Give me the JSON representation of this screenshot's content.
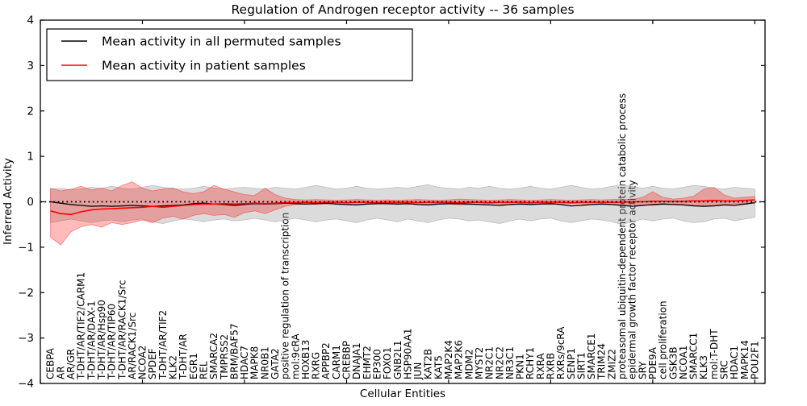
{
  "figure": {
    "title": "Regulation of Androgen receptor activity -- 36 samples",
    "xlabel": "Cellular Entities",
    "ylabel": "Inferred Activity"
  },
  "legend": {
    "items": [
      {
        "label": "Mean activity in all permuted samples",
        "color": "#000000"
      },
      {
        "label": "Mean activity in patient samples",
        "color": "#ff0000"
      }
    ]
  },
  "chart_data": {
    "type": "line",
    "title": "Regulation of Androgen receptor activity -- 36 samples",
    "xlabel": "Cellular Entities",
    "ylabel": "Inferred Activity",
    "ylim": [
      -4,
      4
    ],
    "yticks": [
      4,
      3,
      2,
      1,
      0,
      -1,
      -2,
      -3,
      -4
    ],
    "xlim": [
      0,
      71
    ],
    "xtick_interval": 10,
    "grid": false,
    "zero_reference_line": 0,
    "legend_position": "upper left",
    "categories": [
      "CEBPA",
      "AR",
      "AR/GR",
      "T-DHT/AR/TIF2/CARM1",
      "T-DHT/AR/DAX-1",
      "T-DHT/AR/Hsp90",
      "T-DHT/AR/TIP60",
      "T-DHT/AR/RACK1/Src",
      "AR/RACK1/Src",
      "NCOA2",
      "SPDEF",
      "T-DHT/AR/TIF2",
      "KLK2",
      "T-DHT/AR",
      "EGR1",
      "REL",
      "SMARCA2",
      "TMPRSS2",
      "BRM/BAF57",
      "HDAC7",
      "MAPK8",
      "NR0B1",
      "GATA2",
      "positive regulation of transcription",
      "mol:9cRA",
      "HOXB13",
      "RXRG",
      "APPBP2",
      "CARM1",
      "CREBBP",
      "DNAJA1",
      "EHMT2",
      "EP300",
      "FOXO1",
      "GNB2L1",
      "HSP90AA1",
      "JUN",
      "KAT2B",
      "KAT5",
      "MAP2K4",
      "MAP2K6",
      "MDM2",
      "MYST2",
      "NR2C1",
      "NR2C2",
      "NR3C1",
      "PKN1",
      "RCHY1",
      "RXRA",
      "RXRB",
      "RXRs/9cRA",
      "SENP1",
      "SIRT1",
      "SMARCE1",
      "TRIM24",
      "ZMIZ2",
      "proteasomal ubiquitin-dependent protein catabolic process",
      "epidermal growth factor receptor activity",
      "SRY",
      "PDE9A",
      "cell proliferation",
      "GSK3B",
      "NCOA1",
      "SMARCC1",
      "KLK3",
      "mol:T-DHT",
      "SRC",
      "HDAC1",
      "MAPK14",
      "POU2F1"
    ],
    "series": [
      {
        "name": "Mean activity in all permuted samples",
        "color": "#000000",
        "line_width": 1.3,
        "band_color": "#999999",
        "band_opacity": 0.35,
        "values": [
          0.0,
          -0.03,
          -0.06,
          -0.08,
          -0.1,
          -0.09,
          -0.1,
          -0.09,
          -0.08,
          -0.09,
          -0.1,
          -0.09,
          -0.08,
          -0.07,
          -0.04,
          -0.03,
          -0.05,
          -0.06,
          -0.08,
          -0.06,
          -0.04,
          -0.05,
          -0.04,
          -0.03,
          -0.04,
          -0.05,
          -0.04,
          -0.03,
          -0.05,
          -0.06,
          -0.07,
          -0.05,
          -0.04,
          -0.04,
          -0.05,
          -0.04,
          -0.06,
          -0.07,
          -0.05,
          -0.04,
          -0.04,
          -0.05,
          -0.06,
          -0.07,
          -0.08,
          -0.06,
          -0.05,
          -0.06,
          -0.05,
          -0.04,
          -0.06,
          -0.09,
          -0.08,
          -0.06,
          -0.05,
          -0.06,
          -0.08,
          -0.1,
          -0.08,
          -0.06,
          -0.05,
          -0.06,
          -0.07,
          -0.09,
          -0.1,
          -0.09,
          -0.07,
          -0.08,
          -0.05,
          -0.02
        ],
        "band_upper": [
          0.28,
          0.3,
          0.26,
          0.28,
          0.32,
          0.3,
          0.34,
          0.3,
          0.28,
          0.32,
          0.36,
          0.32,
          0.3,
          0.28,
          0.3,
          0.34,
          0.3,
          0.28,
          0.3,
          0.32,
          0.3,
          0.28,
          0.32,
          0.3,
          0.28,
          0.32,
          0.36,
          0.32,
          0.28,
          0.3,
          0.34,
          0.3,
          0.28,
          0.3,
          0.32,
          0.3,
          0.34,
          0.38,
          0.32,
          0.3,
          0.28,
          0.32,
          0.3,
          0.34,
          0.3,
          0.28,
          0.3,
          0.34,
          0.3,
          0.28,
          0.32,
          0.36,
          0.32,
          0.28,
          0.3,
          0.34,
          0.38,
          0.34,
          0.3,
          0.34,
          0.3,
          0.28,
          0.32,
          0.36,
          0.34,
          0.3,
          0.28,
          0.32,
          0.3,
          0.28
        ],
        "band_lower": [
          -0.46,
          -0.42,
          -0.38,
          -0.42,
          -0.46,
          -0.42,
          -0.4,
          -0.44,
          -0.4,
          -0.38,
          -0.44,
          -0.48,
          -0.42,
          -0.38,
          -0.4,
          -0.44,
          -0.4,
          -0.38,
          -0.42,
          -0.4,
          -0.36,
          -0.4,
          -0.44,
          -0.4,
          -0.36,
          -0.4,
          -0.44,
          -0.4,
          -0.38,
          -0.42,
          -0.46,
          -0.4,
          -0.36,
          -0.4,
          -0.44,
          -0.38,
          -0.42,
          -0.46,
          -0.4,
          -0.36,
          -0.38,
          -0.42,
          -0.4,
          -0.44,
          -0.48,
          -0.42,
          -0.38,
          -0.42,
          -0.38,
          -0.36,
          -0.42,
          -0.46,
          -0.42,
          -0.38,
          -0.4,
          -0.44,
          -0.5,
          -0.44,
          -0.38,
          -0.42,
          -0.38,
          -0.36,
          -0.42,
          -0.46,
          -0.44,
          -0.38,
          -0.36,
          -0.42,
          -0.38,
          -0.34
        ]
      },
      {
        "name": "Mean activity in patient samples",
        "color": "#ff0000",
        "line_width": 1.6,
        "band_color": "#ff0000",
        "band_opacity": 0.27,
        "values": [
          -0.2,
          -0.26,
          -0.28,
          -0.22,
          -0.18,
          -0.16,
          -0.15,
          -0.14,
          -0.13,
          -0.12,
          -0.1,
          -0.12,
          -0.1,
          -0.08,
          -0.06,
          -0.05,
          -0.05,
          -0.04,
          -0.05,
          -0.04,
          -0.03,
          -0.04,
          -0.03,
          -0.02,
          -0.02,
          -0.01,
          -0.02,
          -0.01,
          -0.01,
          -0.02,
          -0.01,
          -0.01,
          -0.02,
          -0.01,
          -0.01,
          -0.01,
          -0.02,
          -0.01,
          -0.01,
          -0.01,
          -0.02,
          -0.01,
          -0.01,
          -0.02,
          -0.01,
          -0.01,
          -0.01,
          -0.02,
          -0.01,
          -0.01,
          -0.01,
          -0.02,
          -0.01,
          -0.01,
          -0.01,
          -0.01,
          -0.01,
          0.0,
          0.0,
          0.01,
          0.01,
          0.01,
          0.01,
          0.02,
          0.02,
          0.03,
          0.02,
          0.02,
          0.03,
          0.04
        ],
        "band_upper": [
          0.3,
          0.24,
          0.28,
          0.34,
          0.26,
          0.3,
          0.24,
          0.36,
          0.44,
          0.3,
          0.24,
          0.28,
          0.3,
          0.22,
          0.18,
          0.22,
          0.36,
          0.28,
          0.22,
          0.16,
          0.14,
          0.3,
          0.16,
          0.08,
          0.05,
          0.04,
          0.05,
          0.04,
          0.03,
          0.04,
          0.05,
          0.04,
          0.03,
          0.04,
          0.03,
          0.04,
          0.05,
          0.04,
          0.03,
          0.04,
          0.06,
          0.05,
          0.04,
          0.03,
          0.04,
          0.05,
          0.04,
          0.03,
          0.04,
          0.05,
          0.04,
          0.03,
          0.04,
          0.05,
          0.04,
          0.05,
          0.06,
          0.05,
          0.1,
          0.22,
          0.1,
          0.06,
          0.08,
          0.12,
          0.28,
          0.32,
          0.15,
          0.08,
          0.1,
          0.12
        ],
        "band_lower": [
          -0.78,
          -0.95,
          -0.66,
          -0.55,
          -0.5,
          -0.56,
          -0.46,
          -0.5,
          -0.46,
          -0.4,
          -0.46,
          -0.36,
          -0.32,
          -0.38,
          -0.3,
          -0.26,
          -0.3,
          -0.28,
          -0.34,
          -0.24,
          -0.2,
          -0.26,
          -0.18,
          -0.1,
          -0.06,
          -0.05,
          -0.06,
          -0.05,
          -0.04,
          -0.05,
          -0.06,
          -0.05,
          -0.04,
          -0.05,
          -0.04,
          -0.05,
          -0.06,
          -0.05,
          -0.04,
          -0.05,
          -0.07,
          -0.06,
          -0.05,
          -0.04,
          -0.05,
          -0.06,
          -0.05,
          -0.04,
          -0.05,
          -0.06,
          -0.05,
          -0.04,
          -0.05,
          -0.06,
          -0.05,
          -0.06,
          -0.07,
          -0.06,
          -0.07,
          -0.08,
          -0.06,
          -0.05,
          -0.06,
          -0.07,
          -0.08,
          -0.08,
          -0.06,
          -0.05,
          -0.04,
          -0.03
        ]
      }
    ]
  }
}
